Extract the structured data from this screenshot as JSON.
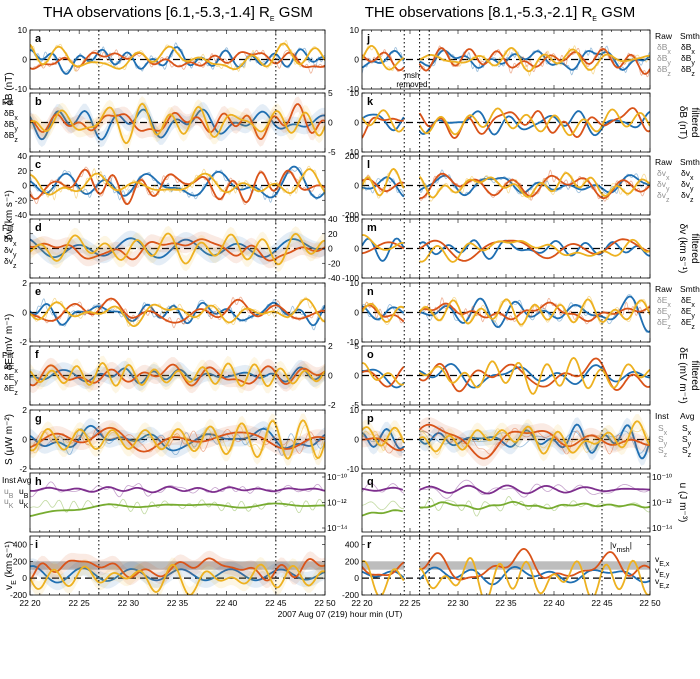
{
  "titles": {
    "left": "THA observations [6.1,-5.3,-1.4] R",
    "left_sub": "E",
    "left_tail": " GSM",
    "right": "THE observations [8.1,-5.3,-2.1] R",
    "right_sub": "E",
    "right_tail": " GSM"
  },
  "colors": {
    "x": "#1f6fb2",
    "y": "#d95319",
    "z": "#edb120",
    "u_b": "#7e2f8e",
    "u_k": "#77ac30",
    "band": "#bdbdbd"
  },
  "xaxis": {
    "label": "2007 Aug 07 (219)  hour min (UT)",
    "left_ticks": [
      "22 20",
      "22 25",
      "22 30",
      "22 35",
      "22 40",
      "22 45",
      "22 50"
    ],
    "right_ticks": [
      "22 20",
      "22 25",
      "22 30",
      "22 35",
      "22 40",
      "22 45",
      "22 50"
    ],
    "vlines_min": [
      27,
      45
    ]
  },
  "annotations": {
    "msh_removed": [
      "msh",
      "removed"
    ],
    "vmsh": "|v",
    "vmsh_sub": "msh",
    "vmsh_tail": "|"
  },
  "left_labels": [
    {
      "text": "δB (nT)"
    },
    {
      "text": "δv (km s⁻¹)"
    },
    {
      "text": "δE (mV m⁻¹)"
    },
    {
      "text": "S (μW m⁻²)"
    },
    {
      "text": "v",
      "sub": "E",
      "tail": " (km s⁻¹)"
    }
  ],
  "right_labels": [
    {
      "text": "δB (nT)",
      "second": "filtered"
    },
    {
      "text": "δv (km s⁻¹)",
      "second": "filtered"
    },
    {
      "text": "δE (mV m⁻¹)",
      "second": "filtered"
    },
    {
      "text": "u (J m⁻³)"
    }
  ],
  "legends": {
    "raw_smth": [
      "Raw",
      "Smth"
    ],
    "filt": "Filt",
    "inst_avg": [
      "Inst",
      "Avg"
    ],
    "B": [
      "δB",
      "δB",
      "δB"
    ],
    "B_sub": [
      "x",
      "y",
      "z"
    ],
    "v": [
      "δv",
      "δv",
      "δv"
    ],
    "E": [
      "δE",
      "δE",
      "δE"
    ],
    "S": [
      "S",
      "S",
      "S"
    ],
    "u": [
      "u",
      "u"
    ],
    "u_sub": [
      "B",
      "K"
    ],
    "vE": [
      "v",
      "v",
      "v"
    ],
    "vE_sub": [
      "E,x",
      "E,y",
      "E,z"
    ]
  },
  "chart_data": [
    {
      "id": "a",
      "type": "line",
      "probe": "THA",
      "quantity": "δB raw/smoothed",
      "ylim": [
        -10,
        10
      ],
      "yticks": [
        -10,
        0,
        10
      ],
      "x_min": [
        20,
        50
      ]
    },
    {
      "id": "b",
      "type": "line",
      "probe": "THA",
      "quantity": "δB filtered",
      "ylim": [
        -5,
        5
      ],
      "yticks": [
        -5,
        0,
        5
      ],
      "x_min": [
        20,
        50
      ]
    },
    {
      "id": "c",
      "type": "line",
      "probe": "THA",
      "quantity": "δv raw/smoothed",
      "ylim": [
        -40,
        40
      ],
      "yticks": [
        -40,
        -20,
        0,
        20,
        40
      ],
      "x_min": [
        20,
        50
      ]
    },
    {
      "id": "d",
      "type": "line",
      "probe": "THA",
      "quantity": "δv filtered",
      "ylim": [
        -40,
        40
      ],
      "yticks": [
        -40,
        -20,
        0,
        20,
        40
      ],
      "x_min": [
        20,
        50
      ]
    },
    {
      "id": "e",
      "type": "line",
      "probe": "THA",
      "quantity": "δE raw/smoothed",
      "ylim": [
        -2,
        2
      ],
      "yticks": [
        -2,
        0,
        2
      ],
      "x_min": [
        20,
        50
      ]
    },
    {
      "id": "f",
      "type": "line",
      "probe": "THA",
      "quantity": "δE filtered",
      "ylim": [
        -2,
        2
      ],
      "yticks": [
        -2,
        0,
        2
      ],
      "x_min": [
        20,
        50
      ]
    },
    {
      "id": "g",
      "type": "line",
      "probe": "THA",
      "quantity": "Poynting flux",
      "ylim": [
        -2,
        2
      ],
      "yticks": [
        -2,
        0,
        2
      ],
      "x_min": [
        20,
        50
      ]
    },
    {
      "id": "h",
      "type": "line",
      "probe": "THA",
      "quantity": "energy density",
      "scale": "log",
      "ytick_labels": [
        "10⁻¹⁰",
        "10⁻¹²",
        "10⁻¹⁴"
      ],
      "x_min": [
        20,
        50
      ]
    },
    {
      "id": "i",
      "type": "line",
      "probe": "THA",
      "quantity": "ExB velocity",
      "ylim": [
        -200,
        500
      ],
      "yticks": [
        -200,
        0,
        200,
        400
      ],
      "x_min": [
        20,
        50
      ]
    },
    {
      "id": "j",
      "type": "line",
      "probe": "THE",
      "quantity": "δB raw/smoothed",
      "ylim": [
        -10,
        10
      ],
      "yticks": [
        -10,
        0,
        10
      ],
      "x_min": [
        20,
        50
      ]
    },
    {
      "id": "k",
      "type": "line",
      "probe": "THE",
      "quantity": "δB filtered",
      "ylim": [
        -10,
        10
      ],
      "yticks": [
        -10,
        0,
        10
      ],
      "x_min": [
        20,
        50
      ]
    },
    {
      "id": "l",
      "type": "line",
      "probe": "THE",
      "quantity": "δv raw/smoothed",
      "ylim": [
        -200,
        200
      ],
      "yticks": [
        -200,
        0,
        200
      ],
      "x_min": [
        20,
        50
      ]
    },
    {
      "id": "m",
      "type": "line",
      "probe": "THE",
      "quantity": "δv filtered",
      "ylim": [
        -100,
        100
      ],
      "yticks": [
        -100,
        0,
        100
      ],
      "x_min": [
        20,
        50
      ]
    },
    {
      "id": "n",
      "type": "line",
      "probe": "THE",
      "quantity": "δE raw/smoothed",
      "ylim": [
        -10,
        10
      ],
      "yticks": [
        -10,
        0,
        10
      ],
      "x_min": [
        20,
        50
      ]
    },
    {
      "id": "o",
      "type": "line",
      "probe": "THE",
      "quantity": "δE filtered",
      "ylim": [
        -5,
        5
      ],
      "yticks": [
        -5,
        0,
        5
      ],
      "x_min": [
        20,
        50
      ]
    },
    {
      "id": "p",
      "type": "line",
      "probe": "THE",
      "quantity": "Poynting flux",
      "ylim": [
        -10,
        10
      ],
      "yticks": [
        -10,
        0,
        10
      ],
      "x_min": [
        20,
        50
      ]
    },
    {
      "id": "q",
      "type": "line",
      "probe": "THE",
      "quantity": "energy density",
      "scale": "log",
      "ytick_labels": [
        "10⁻¹⁰",
        "10⁻¹²",
        "10⁻¹⁴"
      ],
      "x_min": [
        20,
        50
      ]
    },
    {
      "id": "r",
      "type": "line",
      "probe": "THE",
      "quantity": "ExB velocity",
      "ylim": [
        -200,
        500
      ],
      "yticks": [
        -200,
        0,
        200,
        400
      ],
      "x_min": [
        20,
        50
      ]
    }
  ]
}
